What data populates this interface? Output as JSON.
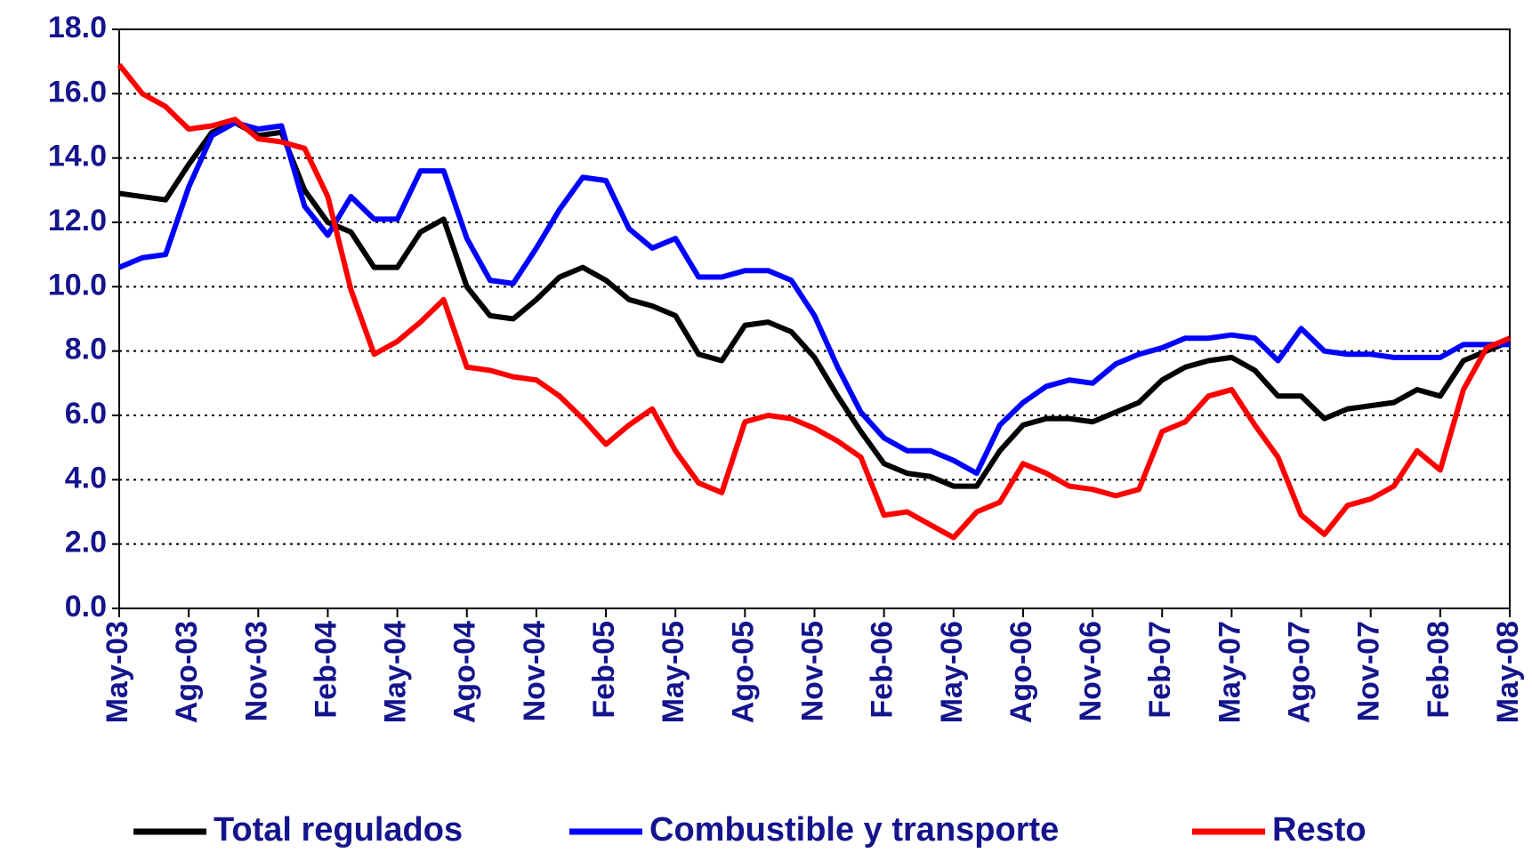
{
  "chart_data": {
    "type": "line",
    "categories": [
      "May-03",
      null,
      null,
      "Ago-03",
      null,
      null,
      "Nov-03",
      null,
      null,
      "Feb-04",
      null,
      null,
      "May-04",
      null,
      null,
      "Ago-04",
      null,
      null,
      "Nov-04",
      null,
      null,
      "Feb-05",
      null,
      null,
      "May-05",
      null,
      null,
      "Ago-05",
      null,
      null,
      "Nov-05",
      null,
      null,
      "Feb-06",
      null,
      null,
      "May-06",
      null,
      null,
      "Ago-06",
      null,
      null,
      "Nov-06",
      null,
      null,
      "Feb-07",
      null,
      null,
      "May-07",
      null,
      null,
      "Ago-07",
      null,
      null,
      "Nov-07",
      null,
      null,
      "Feb-08",
      null,
      null,
      "May-08"
    ],
    "series": [
      {
        "name": "Total regulados",
        "color": "#000000",
        "values": [
          12.9,
          12.8,
          12.7,
          13.8,
          14.8,
          15.1,
          14.7,
          14.8,
          13.0,
          12.0,
          11.7,
          10.6,
          10.6,
          11.7,
          12.1,
          10.0,
          9.1,
          9.0,
          9.6,
          10.3,
          10.6,
          10.2,
          9.6,
          9.4,
          9.1,
          7.9,
          7.7,
          8.8,
          8.9,
          8.6,
          7.8,
          6.6,
          5.5,
          4.5,
          4.2,
          4.1,
          3.8,
          3.8,
          4.9,
          5.7,
          5.9,
          5.9,
          5.8,
          6.1,
          6.4,
          7.1,
          7.5,
          7.7,
          7.8,
          7.4,
          6.6,
          6.6,
          5.9,
          6.2,
          6.3,
          6.4,
          6.8,
          6.6,
          7.7,
          8.0,
          8.3
        ]
      },
      {
        "name": "Combustible y transporte",
        "color": "#0000ff",
        "values": [
          10.6,
          10.9,
          11.0,
          13.1,
          14.7,
          15.1,
          14.9,
          15.0,
          12.5,
          11.6,
          12.8,
          12.1,
          12.1,
          13.6,
          13.6,
          11.5,
          10.2,
          10.1,
          11.2,
          12.4,
          13.4,
          13.3,
          11.8,
          11.2,
          11.5,
          10.3,
          10.3,
          10.5,
          10.5,
          10.2,
          9.1,
          7.5,
          6.1,
          5.3,
          4.9,
          4.9,
          4.6,
          4.2,
          5.7,
          6.4,
          6.9,
          7.1,
          7.0,
          7.6,
          7.9,
          8.1,
          8.4,
          8.4,
          8.5,
          8.4,
          7.7,
          8.7,
          8.0,
          7.9,
          7.9,
          7.8,
          7.8,
          7.8,
          8.2,
          8.2,
          8.2
        ]
      },
      {
        "name": "Resto",
        "color": "#ff0000",
        "values": [
          16.9,
          16.0,
          15.6,
          14.9,
          15.0,
          15.2,
          14.6,
          14.5,
          14.3,
          12.8,
          9.9,
          7.9,
          8.3,
          8.9,
          9.6,
          7.5,
          7.4,
          7.2,
          7.1,
          6.6,
          5.9,
          5.1,
          5.7,
          6.2,
          4.9,
          3.9,
          3.6,
          5.8,
          6.0,
          5.9,
          5.6,
          5.2,
          4.7,
          2.9,
          3.0,
          2.6,
          2.2,
          3.0,
          3.3,
          4.5,
          4.2,
          3.8,
          3.7,
          3.5,
          3.7,
          5.5,
          5.8,
          6.6,
          6.8,
          5.7,
          4.7,
          2.9,
          2.3,
          3.2,
          3.4,
          3.8,
          4.9,
          4.3,
          6.8,
          8.1,
          8.4
        ]
      }
    ],
    "ylim": [
      0,
      18
    ],
    "yticks": [
      {
        "value": 0,
        "label": "0.0"
      },
      {
        "value": 2,
        "label": "2.0"
      },
      {
        "value": 4,
        "label": "4.0"
      },
      {
        "value": 6,
        "label": "6.0"
      },
      {
        "value": 8,
        "label": "8.0"
      },
      {
        "value": 10,
        "label": "10.0"
      },
      {
        "value": 12,
        "label": "12.0"
      },
      {
        "value": 14,
        "label": "14.0"
      },
      {
        "value": 16,
        "label": "16.0"
      },
      {
        "value": 18,
        "label": "18.0"
      }
    ],
    "grid": true,
    "legend": "bottom"
  }
}
